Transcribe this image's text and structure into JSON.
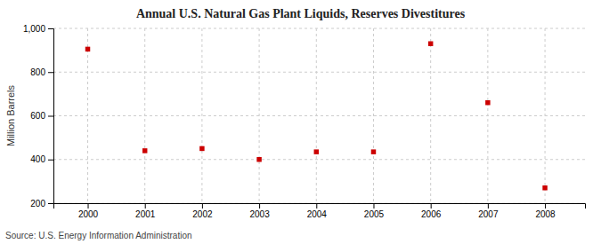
{
  "chart_data": {
    "type": "scatter",
    "title": "Annual U.S. Natural Gas Plant Liquids, Reserves Divestitures",
    "ylabel": "Million Barrels",
    "annotations": [
      "Source: U.S. Energy Information Administration"
    ],
    "x": [
      2000,
      2001,
      2002,
      2003,
      2004,
      2005,
      2006,
      2007,
      2008
    ],
    "values": [
      905,
      440,
      450,
      400,
      435,
      435,
      930,
      660,
      270
    ],
    "color": "#cc0000",
    "marker": "square",
    "xlim": [
      1999.4,
      2008.7
    ],
    "xticks": [
      2000,
      2001,
      2002,
      2003,
      2004,
      2005,
      2006,
      2007,
      2008
    ],
    "ylim": [
      200,
      1000
    ],
    "yticks": [
      200,
      400,
      600,
      800,
      {
        "value": 1000,
        "label": "1,000"
      }
    ],
    "grid": true
  }
}
